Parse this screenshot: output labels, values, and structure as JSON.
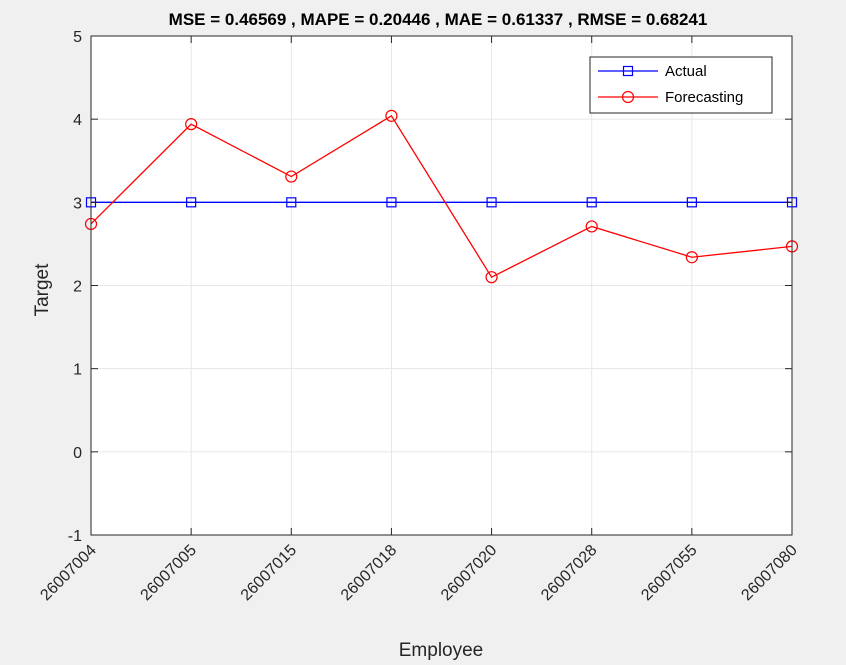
{
  "chart_data": {
    "type": "line",
    "title": "MSE = 0.46569 , MAPE = 0.20446 , MAE = 0.61337 , RMSE = 0.68241",
    "xlabel": "Employee",
    "ylabel": "Target",
    "categories": [
      "26007004",
      "26007005",
      "26007015",
      "26007018",
      "26007020",
      "26007028",
      "26007055",
      "26007080"
    ],
    "ylim": [
      -1,
      5
    ],
    "yticks": [
      "-1",
      "0",
      "1",
      "2",
      "3",
      "4",
      "5"
    ],
    "grid": true,
    "legend_position": "top-right",
    "series": [
      {
        "name": "Actual",
        "values": [
          3,
          3,
          3,
          3,
          3,
          3,
          3,
          3
        ],
        "color": "#0000ff",
        "marker": "square"
      },
      {
        "name": "Forecasting",
        "values": [
          2.74,
          3.94,
          3.31,
          4.04,
          2.1,
          2.71,
          2.34,
          2.47
        ],
        "color": "#ff0000",
        "marker": "circle"
      }
    ]
  }
}
